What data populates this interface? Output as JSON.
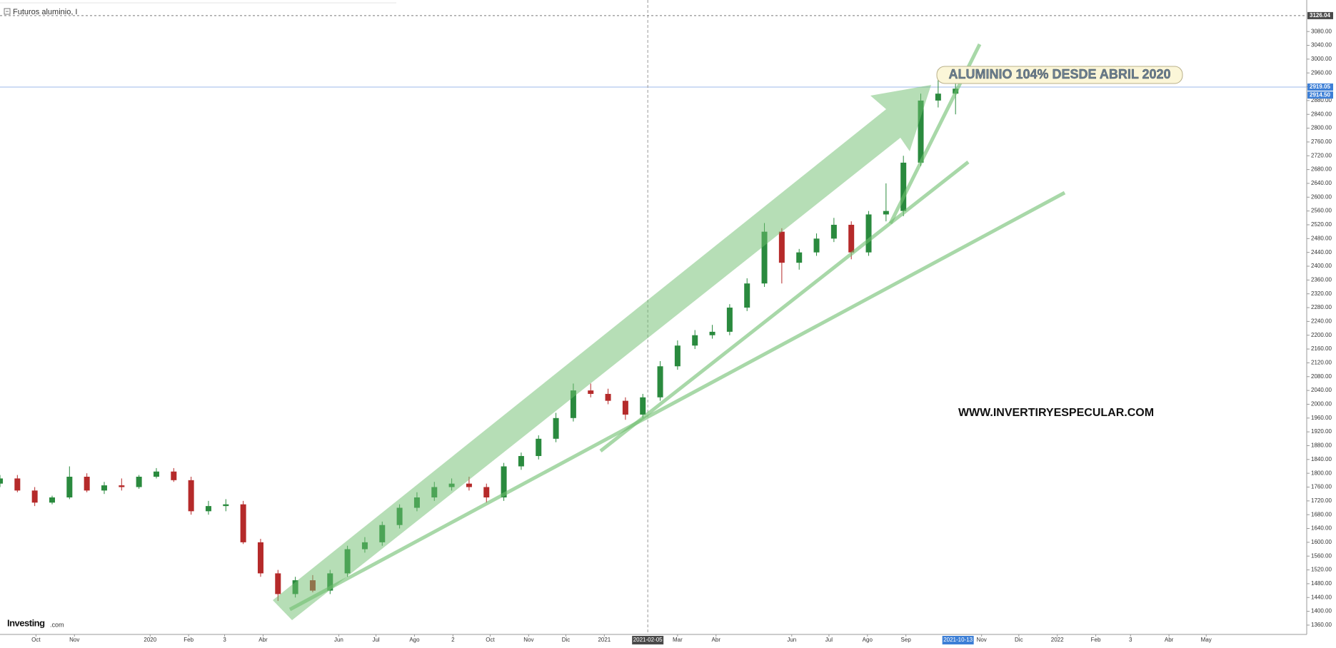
{
  "chart_data": {
    "type": "candlestick",
    "title": "Futuros aluminio, I",
    "annotations": {
      "headline": "ALUMINIO 104% DESDE ABRIL 2020",
      "website": "WWW.INVERTIRYESPECULAR.COM"
    },
    "logo": {
      "brand": "Investing",
      "suffix": ".com"
    },
    "up_color": "#2a8a3e",
    "down_color": "#b52a2a",
    "x": [
      "2019-09-02",
      "2019-09-16",
      "2019-09-30",
      "2019-10-14",
      "2019-10-28",
      "2019-11-11",
      "2019-11-25",
      "2019-12-09",
      "2019-12-23",
      "2020-01-06",
      "2020-01-20",
      "2020-02-03",
      "2020-02-17",
      "2020-03-02",
      "2020-03-16",
      "2020-03-30",
      "2020-04-13",
      "2020-04-27",
      "2020-05-11",
      "2020-05-25",
      "2020-06-08",
      "2020-06-22",
      "2020-07-06",
      "2020-07-20",
      "2020-08-03",
      "2020-08-17",
      "2020-08-31",
      "2020-09-14",
      "2020-09-28",
      "2020-10-12",
      "2020-10-26",
      "2020-11-09",
      "2020-11-23",
      "2020-12-07",
      "2020-12-21",
      "2021-01-04",
      "2021-01-18",
      "2021-02-01",
      "2021-02-15",
      "2021-03-01",
      "2021-03-15",
      "2021-03-29",
      "2021-04-12",
      "2021-04-26",
      "2021-05-10",
      "2021-05-24",
      "2021-06-07",
      "2021-06-21",
      "2021-07-05",
      "2021-07-19",
      "2021-08-02",
      "2021-08-16",
      "2021-08-30",
      "2021-09-13",
      "2021-09-27",
      "2021-10-11"
    ],
    "open": [
      1770,
      1785,
      1750,
      1715,
      1730,
      1790,
      1750,
      1765,
      1760,
      1790,
      1805,
      1780,
      1690,
      1705,
      1710,
      1600,
      1510,
      1450,
      1490,
      1460,
      1510,
      1580,
      1600,
      1650,
      1700,
      1730,
      1760,
      1770,
      1760,
      1730,
      1820,
      1850,
      1900,
      1960,
      2040,
      2030,
      2010,
      1970,
      2020,
      2110,
      2170,
      2200,
      2210,
      2280,
      2350,
      2500,
      2410,
      2440,
      2480,
      2520,
      2440,
      2550,
      2560,
      2700,
      2880,
      2900
    ],
    "high": [
      1795,
      1795,
      1760,
      1735,
      1820,
      1800,
      1775,
      1785,
      1795,
      1815,
      1815,
      1790,
      1720,
      1725,
      1720,
      1610,
      1520,
      1500,
      1505,
      1520,
      1590,
      1615,
      1660,
      1710,
      1745,
      1775,
      1785,
      1790,
      1770,
      1830,
      1860,
      1910,
      1975,
      2060,
      2060,
      2045,
      2020,
      2030,
      2125,
      2185,
      2215,
      2230,
      2290,
      2365,
      2525,
      2510,
      2450,
      2495,
      2540,
      2530,
      2560,
      2640,
      2720,
      2900,
      2970,
      2940
    ],
    "low": [
      1760,
      1745,
      1705,
      1710,
      1725,
      1745,
      1740,
      1750,
      1755,
      1785,
      1775,
      1680,
      1680,
      1690,
      1595,
      1500,
      1430,
      1440,
      1455,
      1450,
      1500,
      1570,
      1590,
      1640,
      1690,
      1720,
      1750,
      1750,
      1715,
      1720,
      1810,
      1840,
      1890,
      1950,
      2020,
      2000,
      1955,
      1960,
      2010,
      2100,
      2160,
      2190,
      2200,
      2270,
      2340,
      2350,
      2390,
      2430,
      2470,
      2420,
      2430,
      2530,
      2545,
      2690,
      2860,
      2840
    ],
    "close": [
      1785,
      1750,
      1715,
      1730,
      1790,
      1750,
      1765,
      1760,
      1790,
      1805,
      1780,
      1690,
      1705,
      1710,
      1600,
      1510,
      1450,
      1490,
      1460,
      1510,
      1580,
      1600,
      1650,
      1700,
      1730,
      1760,
      1770,
      1760,
      1730,
      1820,
      1850,
      1900,
      1960,
      2040,
      2030,
      2010,
      1970,
      2020,
      2110,
      2170,
      2200,
      2210,
      2280,
      2350,
      2500,
      2410,
      2440,
      2480,
      2520,
      2440,
      2550,
      2560,
      2700,
      2880,
      2900,
      2914.5
    ],
    "xlim": [
      "2019-09-02",
      "2022-07-21"
    ],
    "xticks": [
      {
        "value": "2019-10-01",
        "label": "Oct"
      },
      {
        "value": "2019-11-01",
        "label": "Nov"
      },
      {
        "value": "2020-01-01",
        "label": "2020"
      },
      {
        "value": "2020-02-01",
        "label": "Feb"
      },
      {
        "value": "2020-03-01",
        "label": "3"
      },
      {
        "value": "2020-04-01",
        "label": "Abr"
      },
      {
        "value": "2020-06-01",
        "label": "Jun"
      },
      {
        "value": "2020-07-01",
        "label": "Jul"
      },
      {
        "value": "2020-08-01",
        "label": "Ago"
      },
      {
        "value": "2020-09-01",
        "label": "2"
      },
      {
        "value": "2020-10-01",
        "label": "Oct"
      },
      {
        "value": "2020-11-01",
        "label": "Nov"
      },
      {
        "value": "2020-12-01",
        "label": "Dic"
      },
      {
        "value": "2021-01-01",
        "label": "2021"
      },
      {
        "value": "2021-03-01",
        "label": "Mar"
      },
      {
        "value": "2021-04-01",
        "label": "Abr"
      },
      {
        "value": "2021-06-01",
        "label": "Jun"
      },
      {
        "value": "2021-07-01",
        "label": "Jul"
      },
      {
        "value": "2021-08-01",
        "label": "Ago"
      },
      {
        "value": "2021-09-01",
        "label": "Sep"
      },
      {
        "value": "2021-11-01",
        "label": "Nov"
      },
      {
        "value": "2021-12-01",
        "label": "Dic"
      },
      {
        "value": "2022-01-01",
        "label": "2022"
      },
      {
        "value": "2022-02-01",
        "label": "Feb"
      },
      {
        "value": "2022-03-01",
        "label": "3"
      },
      {
        "value": "2022-04-01",
        "label": "Abr"
      },
      {
        "value": "2022-05-01",
        "label": "May"
      }
    ],
    "x_markers": [
      {
        "value": "2021-02-05",
        "label": "2021-02-05",
        "crosshair": true
      },
      {
        "value": "2021-10-13",
        "label": "2021-10-13",
        "crosshair": false
      }
    ],
    "ylim": [
      1333,
      3161
    ],
    "yticks": [
      {
        "value": 1360,
        "label": "1360.00"
      },
      {
        "value": 1400,
        "label": "1400.00"
      },
      {
        "value": 1440,
        "label": "1440.00"
      },
      {
        "value": 1480,
        "label": "1480.00"
      },
      {
        "value": 1520,
        "label": "1520.00"
      },
      {
        "value": 1560,
        "label": "1560.00"
      },
      {
        "value": 1600,
        "label": "1600.00"
      },
      {
        "value": 1640,
        "label": "1640.00"
      },
      {
        "value": 1680,
        "label": "1680.00"
      },
      {
        "value": 1720,
        "label": "1720.00"
      },
      {
        "value": 1760,
        "label": "1760.00"
      },
      {
        "value": 1800,
        "label": "1800.00"
      },
      {
        "value": 1840,
        "label": "1840.00"
      },
      {
        "value": 1880,
        "label": "1880.00"
      },
      {
        "value": 1920,
        "label": "1920.00"
      },
      {
        "value": 1960,
        "label": "1960.00"
      },
      {
        "value": 2000,
        "label": "2000.00"
      },
      {
        "value": 2040,
        "label": "2040.00"
      },
      {
        "value": 2080,
        "label": "2080.00"
      },
      {
        "value": 2120,
        "label": "2120.00"
      },
      {
        "value": 2160,
        "label": "2160.00"
      },
      {
        "value": 2200,
        "label": "2200.00"
      },
      {
        "value": 2240,
        "label": "2240.00"
      },
      {
        "value": 2280,
        "label": "2280.00"
      },
      {
        "value": 2320,
        "label": "2320.00"
      },
      {
        "value": 2360,
        "label": "2360.00"
      },
      {
        "value": 2400,
        "label": "2400.00"
      },
      {
        "value": 2440,
        "label": "2440.00"
      },
      {
        "value": 2480,
        "label": "2480.00"
      },
      {
        "value": 2520,
        "label": "2520.00"
      },
      {
        "value": 2560,
        "label": "2560.00"
      },
      {
        "value": 2600,
        "label": "2600.00"
      },
      {
        "value": 2640,
        "label": "2640.00"
      },
      {
        "value": 2680,
        "label": "2680.00"
      },
      {
        "value": 2720,
        "label": "2720.00"
      },
      {
        "value": 2760,
        "label": "2760.00"
      },
      {
        "value": 2800,
        "label": "2800.00"
      },
      {
        "value": 2840,
        "label": "2840.00"
      },
      {
        "value": 2880,
        "label": "2880.00"
      },
      {
        "value": 2920,
        "label": "2920.00"
      },
      {
        "value": 2960,
        "label": "2960.00"
      },
      {
        "value": 3000,
        "label": "3000.00"
      },
      {
        "value": 3040,
        "label": "3040.00"
      },
      {
        "value": 3080,
        "label": "3080.00"
      }
    ],
    "price_tags": [
      {
        "value": 3126.04,
        "label": "3126.04",
        "color": "#4a4a4a",
        "line": "dashed"
      },
      {
        "value": 2919.05,
        "label": "2919.05",
        "color": "#3d7fd6",
        "line": "solid"
      },
      {
        "value": 2914.5,
        "label": "2914.50",
        "color": "#3d7fd6",
        "line": "none"
      }
    ]
  }
}
